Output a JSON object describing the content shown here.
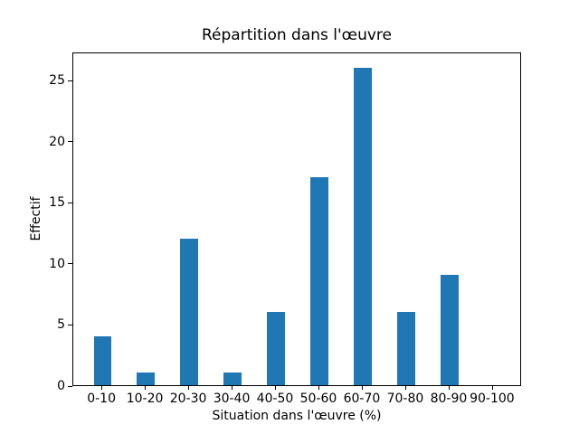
{
  "chart_data": {
    "type": "bar",
    "title": "Répartition dans l'œuvre",
    "xlabel": "Situation dans l'œuvre (%)",
    "ylabel": "Effectif",
    "categories": [
      "0-10",
      "10-20",
      "20-30",
      "30-40",
      "40-50",
      "50-60",
      "60-70",
      "70-80",
      "80-90",
      "90-100"
    ],
    "values": [
      4,
      1,
      12,
      1,
      6,
      17,
      26,
      6,
      9,
      0
    ],
    "yticks": [
      0,
      5,
      10,
      15,
      20,
      25
    ],
    "ylim": [
      0,
      27.3
    ],
    "bar_color": "#1f77b4",
    "background_color": "#ffffff",
    "grid": false,
    "legend": null
  }
}
